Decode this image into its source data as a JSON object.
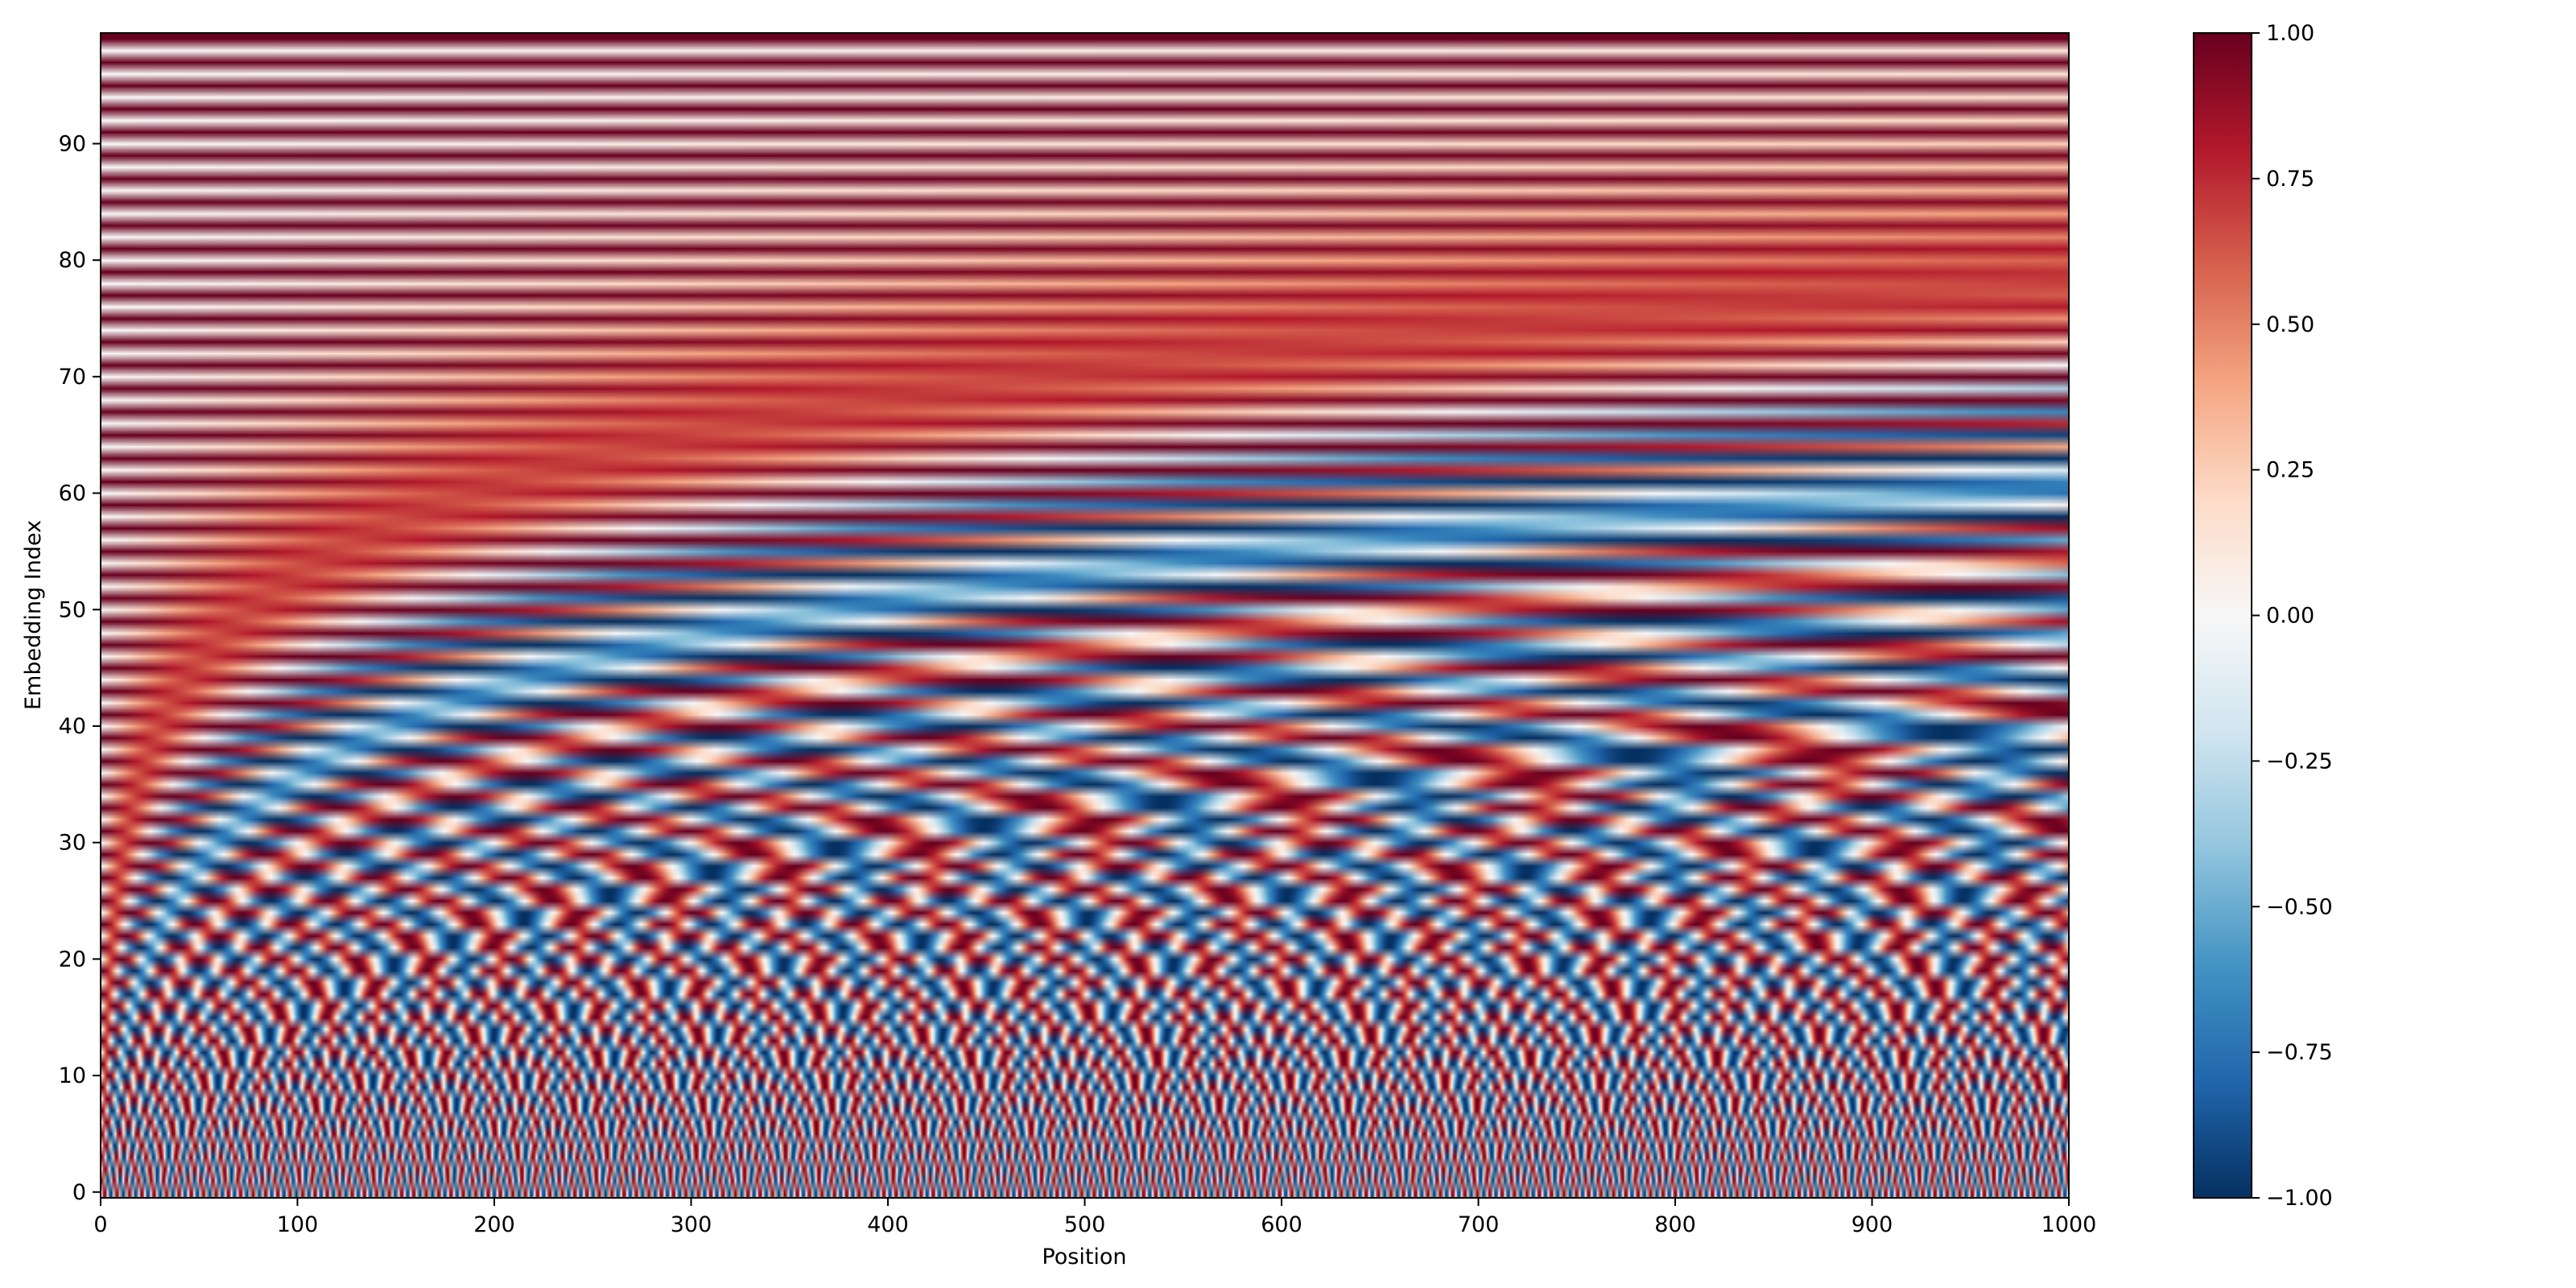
{
  "chart_data": {
    "type": "heatmap",
    "title": "",
    "xlabel": "Position",
    "ylabel": "Embedding Index",
    "x": {
      "min": 0,
      "max": 1000,
      "count": 1000
    },
    "y": {
      "min": 0,
      "max": 99,
      "count": 100
    },
    "xlim": [
      0,
      1000
    ],
    "ylim": [
      -0.5,
      99.5
    ],
    "xticks": [
      0,
      100,
      200,
      300,
      400,
      500,
      600,
      700,
      800,
      900,
      1000
    ],
    "xtick_labels": [
      "0",
      "100",
      "200",
      "300",
      "400",
      "500",
      "600",
      "700",
      "800",
      "900",
      "1000"
    ],
    "yticks": [
      0,
      10,
      20,
      30,
      40,
      50,
      60,
      70,
      80,
      90
    ],
    "ytick_labels": [
      "0",
      "10",
      "20",
      "30",
      "40",
      "50",
      "60",
      "70",
      "80",
      "90"
    ],
    "values_formula": "value(pos, i) = even i: sin(pos / 10000^(i/100)); odd i: cos(pos / 10000^((i-1)/100))",
    "embedding_dim": 100,
    "base": 10000,
    "colormap": "RdBu_r",
    "colormap_stops": [
      "#053061",
      "#2166ac",
      "#4393c3",
      "#92c5de",
      "#d1e5f0",
      "#f7f7f7",
      "#fddbc7",
      "#f4a582",
      "#d6604d",
      "#b2182b",
      "#67001f"
    ],
    "vmin": -1.0,
    "vmax": 1.0,
    "grid": false,
    "colorbar": {
      "ticks": [
        1.0,
        0.75,
        0.5,
        0.25,
        0.0,
        -0.25,
        -0.5,
        -0.75,
        -1.0
      ],
      "tick_labels": [
        "1.00",
        "0.75",
        "0.50",
        "0.25",
        "0.00",
        "−0.25",
        "−0.50",
        "−0.75",
        "−1.00"
      ]
    }
  }
}
